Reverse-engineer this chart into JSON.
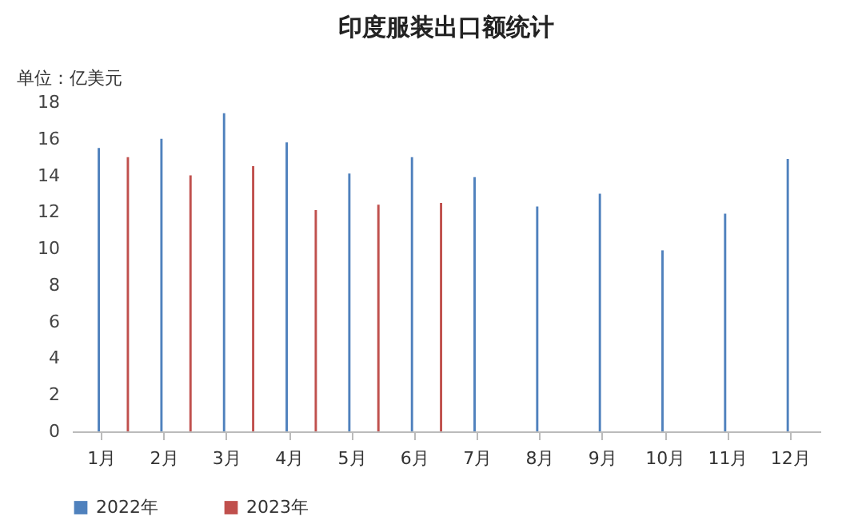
{
  "chart_data": {
    "type": "bar",
    "title": "印度服装出口额统计",
    "ylabel": "单位：亿美元",
    "categories": [
      "1月",
      "2月",
      "3月",
      "4月",
      "5月",
      "6月",
      "7月",
      "8月",
      "9月",
      "10月",
      "11月",
      "12月"
    ],
    "series": [
      {
        "name": "2022年",
        "color": "#4f81bd",
        "values": [
          15.5,
          16.0,
          17.4,
          15.8,
          14.1,
          15.0,
          13.9,
          12.3,
          13.0,
          9.9,
          11.9,
          14.9
        ]
      },
      {
        "name": "2023年",
        "color": "#c0504d",
        "values": [
          15.0,
          14.0,
          14.5,
          12.1,
          12.4,
          12.5,
          null,
          null,
          null,
          null,
          null,
          null
        ]
      }
    ],
    "ylim": [
      0,
      18
    ],
    "yticks": [
      0,
      2,
      4,
      6,
      8,
      10,
      12,
      14,
      16,
      18
    ],
    "grid": false,
    "legend": "bottom"
  }
}
